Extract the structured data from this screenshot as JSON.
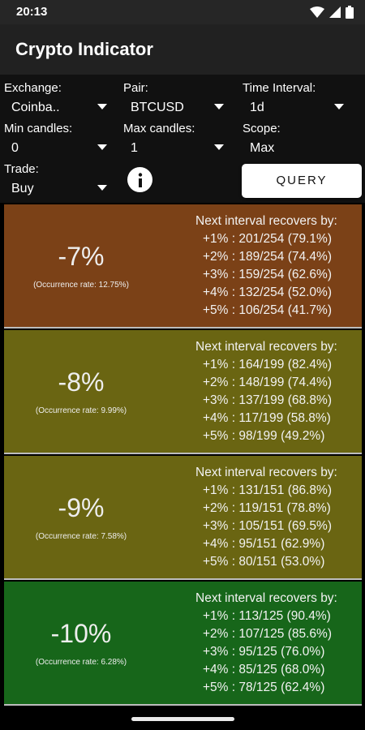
{
  "status": {
    "time": "20:13"
  },
  "app": {
    "title": "Crypto Indicator"
  },
  "controls": {
    "exchange_label": "Exchange:",
    "exchange_value": "Coinba..",
    "pair_label": "Pair:",
    "pair_value": "BTCUSD",
    "interval_label": "Time Interval:",
    "interval_value": "1d",
    "min_label": "Min candles:",
    "min_value": "0",
    "max_label": "Max candles:",
    "max_value": "1",
    "scope_label": "Scope:",
    "scope_value": "Max",
    "trade_label": "Trade:",
    "trade_value": "Buy",
    "query_label": "QUERY"
  },
  "results": [
    {
      "percent": "-7%",
      "occurrence": "(Occurrence rate: 12.75%)",
      "title": "Next interval recovers by:",
      "color": "#7b4117",
      "lines": [
        "+1% : 201/254 (79.1%)",
        "+2% : 189/254 (74.4%)",
        "+3% : 159/254 (62.6%)",
        "+4% : 132/254 (52.0%)",
        "+5% : 106/254 (41.7%)"
      ]
    },
    {
      "percent": "-8%",
      "occurrence": "(Occurrence rate: 9.99%)",
      "title": "Next interval recovers by:",
      "color": "#6a6512",
      "lines": [
        "+1% : 164/199 (82.4%)",
        "+2% : 148/199 (74.4%)",
        "+3% : 137/199 (68.8%)",
        "+4% : 117/199 (58.8%)",
        "+5% : 98/199 (49.2%)"
      ]
    },
    {
      "percent": "-9%",
      "occurrence": "(Occurrence rate: 7.58%)",
      "title": "Next interval recovers by:",
      "color": "#6a6512",
      "lines": [
        "+1% : 131/151 (86.8%)",
        "+2% : 119/151 (78.8%)",
        "+3% : 105/151 (69.5%)",
        "+4% : 95/151 (62.9%)",
        "+5% : 80/151 (53.0%)"
      ]
    },
    {
      "percent": "-10%",
      "occurrence": "(Occurrence rate: 6.28%)",
      "title": "Next interval recovers by:",
      "color": "#17661a",
      "lines": [
        "+1% : 113/125 (90.4%)",
        "+2% : 107/125 (85.6%)",
        "+3% : 95/125 (76.0%)",
        "+4% : 85/125 (68.0%)",
        "+5% : 78/125 (62.4%)"
      ]
    }
  ]
}
